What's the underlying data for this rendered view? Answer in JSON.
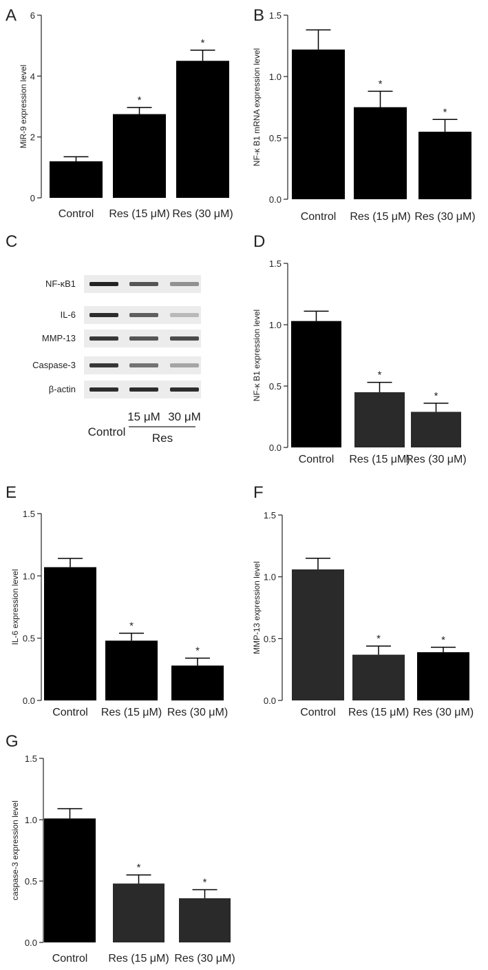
{
  "panel_letters": {
    "A": "A",
    "B": "B",
    "C": "C",
    "D": "D",
    "E": "E",
    "F": "F",
    "G": "G"
  },
  "blot": {
    "rows": [
      "NF-κB1",
      "IL-6",
      "MMP-13",
      "Caspase-3",
      "β-actin"
    ],
    "control_label": "Control",
    "dose_labels": [
      "15 μM",
      "30 μM"
    ],
    "group_label": "Res",
    "band_intensity": [
      [
        1.0,
        0.75,
        0.45
      ],
      [
        0.95,
        0.7,
        0.25
      ],
      [
        0.9,
        0.75,
        0.8
      ],
      [
        0.9,
        0.6,
        0.35
      ],
      [
        0.95,
        0.95,
        0.95
      ]
    ]
  },
  "colors": {
    "bar_black": "#000000",
    "bar_dark": "#2a2a2a",
    "axis": "#222222",
    "text": "#222222"
  },
  "chart_data": [
    {
      "panel": "A",
      "type": "bar",
      "categories": [
        "Control",
        "Res (15 μM)",
        "Res (30 μM)"
      ],
      "values": [
        1.2,
        2.75,
        4.5
      ],
      "errors": [
        0.15,
        0.22,
        0.35
      ],
      "significance": [
        "",
        "*",
        "*"
      ],
      "ylabel": "MiR-9 expression level",
      "ylim": [
        0,
        6
      ],
      "yticks": [
        0,
        2,
        4,
        6
      ],
      "ytick_labels": [
        "0",
        "2",
        "4",
        "6"
      ],
      "bar_colors": [
        "#000000",
        "#000000",
        "#000000"
      ]
    },
    {
      "panel": "B",
      "type": "bar",
      "categories": [
        "Control",
        "Res (15 μM)",
        "Res (30 μM)"
      ],
      "values": [
        1.22,
        0.75,
        0.55
      ],
      "errors": [
        0.16,
        0.13,
        0.1
      ],
      "significance": [
        "",
        "*",
        "*"
      ],
      "ylabel": "NF-κ B1 mRNA expression level",
      "ylim": [
        0,
        1.5
      ],
      "yticks": [
        0,
        0.5,
        1.0,
        1.5
      ],
      "ytick_labels": [
        "0.0",
        "0.5",
        "1.0",
        "1.5"
      ],
      "bar_colors": [
        "#000000",
        "#000000",
        "#000000"
      ]
    },
    {
      "panel": "D",
      "type": "bar",
      "categories": [
        "Control",
        "Res (15 μM)",
        "Res (30 μM)"
      ],
      "values": [
        1.03,
        0.45,
        0.29
      ],
      "errors": [
        0.08,
        0.08,
        0.07
      ],
      "significance": [
        "",
        "*",
        "*"
      ],
      "ylabel": "NF-κ B1 expression level",
      "ylim": [
        0,
        1.5
      ],
      "yticks": [
        0,
        0.5,
        1.0,
        1.5
      ],
      "ytick_labels": [
        "0.0",
        "0.5",
        "1.0",
        "1.5"
      ],
      "bar_colors": [
        "#000000",
        "#2a2a2a",
        "#2a2a2a"
      ]
    },
    {
      "panel": "E",
      "type": "bar",
      "categories": [
        "Control",
        "Res (15 μM)",
        "Res (30 μM)"
      ],
      "values": [
        1.07,
        0.48,
        0.28
      ],
      "errors": [
        0.07,
        0.06,
        0.06
      ],
      "significance": [
        "",
        "*",
        "*"
      ],
      "ylabel": "IL-6 expression level",
      "ylim": [
        0,
        1.5
      ],
      "yticks": [
        0,
        0.5,
        1.0,
        1.5
      ],
      "ytick_labels": [
        "0.0",
        "0.5",
        "1.0",
        "1.5"
      ],
      "bar_colors": [
        "#000000",
        "#000000",
        "#000000"
      ]
    },
    {
      "panel": "F",
      "type": "bar",
      "categories": [
        "Control",
        "Res (15 μM)",
        "Res (30 μM)"
      ],
      "values": [
        1.06,
        0.37,
        0.39
      ],
      "errors": [
        0.09,
        0.07,
        0.04
      ],
      "significance": [
        "",
        "*",
        "*"
      ],
      "ylabel": "MMP-13 expression level",
      "ylim": [
        0,
        1.5
      ],
      "yticks": [
        0,
        0.5,
        1.0,
        1.5
      ],
      "ytick_labels": [
        "0.0",
        "0.5",
        "1.0",
        "1.5"
      ],
      "bar_colors": [
        "#2a2a2a",
        "#2a2a2a",
        "#000000"
      ]
    },
    {
      "panel": "G",
      "type": "bar",
      "categories": [
        "Control",
        "Res (15 μM)",
        "Res (30 μM)"
      ],
      "values": [
        1.01,
        0.48,
        0.36
      ],
      "errors": [
        0.08,
        0.07,
        0.07
      ],
      "significance": [
        "",
        "*",
        "*"
      ],
      "ylabel": "caspase-3 expression level",
      "ylim": [
        0,
        1.5
      ],
      "yticks": [
        0,
        0.5,
        1.0,
        1.5
      ],
      "ytick_labels": [
        "0.0",
        "0.5",
        "1.0",
        "1.5"
      ],
      "bar_colors": [
        "#000000",
        "#2a2a2a",
        "#2a2a2a"
      ]
    }
  ]
}
